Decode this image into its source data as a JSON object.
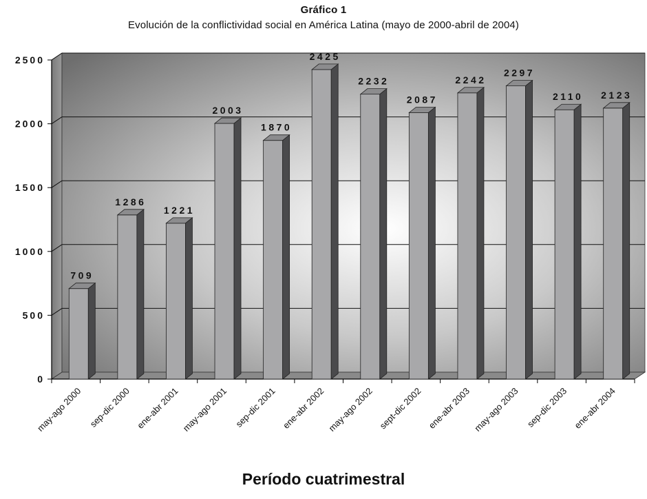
{
  "chart_data": {
    "type": "bar",
    "title": "Gráfico 1",
    "subtitle": "Evolución de la conflictividad social en América Latina (mayo de 2000-abril de 2004)",
    "xlabel": "Período cuatrimestral",
    "ylabel": "",
    "ylim": [
      0,
      2500
    ],
    "yticks": [
      0,
      500,
      1000,
      1500,
      2000,
      2500
    ],
    "ytick_labels": [
      "0",
      "500",
      "1000",
      "1500",
      "2000",
      "2500"
    ],
    "grid": true,
    "categories": [
      "may-ago 2000",
      "sep-dic 2000",
      "ene-abr 2001",
      "may-ago 2001",
      "sep-dic 2001",
      "ene-abr 2002",
      "may-ago 2002",
      "sept-dic 2002",
      "ene-abr 2003",
      "may-ago 2003",
      "sep-dic 2003",
      "ene-abr 2004"
    ],
    "values": [
      709,
      1286,
      1221,
      2003,
      1870,
      2425,
      2232,
      2087,
      2242,
      2297,
      2110,
      2123
    ],
    "value_labels": [
      "709",
      "1286",
      "1221",
      "2003",
      "1870",
      "2425",
      "2232",
      "2087",
      "2242",
      "2297",
      "2110",
      "2123"
    ],
    "colors": {
      "bar_front": "#a8a8aa",
      "bar_side": "#4a4a4c",
      "bar_top": "#8c8c8e",
      "gridline": "#111111"
    }
  }
}
